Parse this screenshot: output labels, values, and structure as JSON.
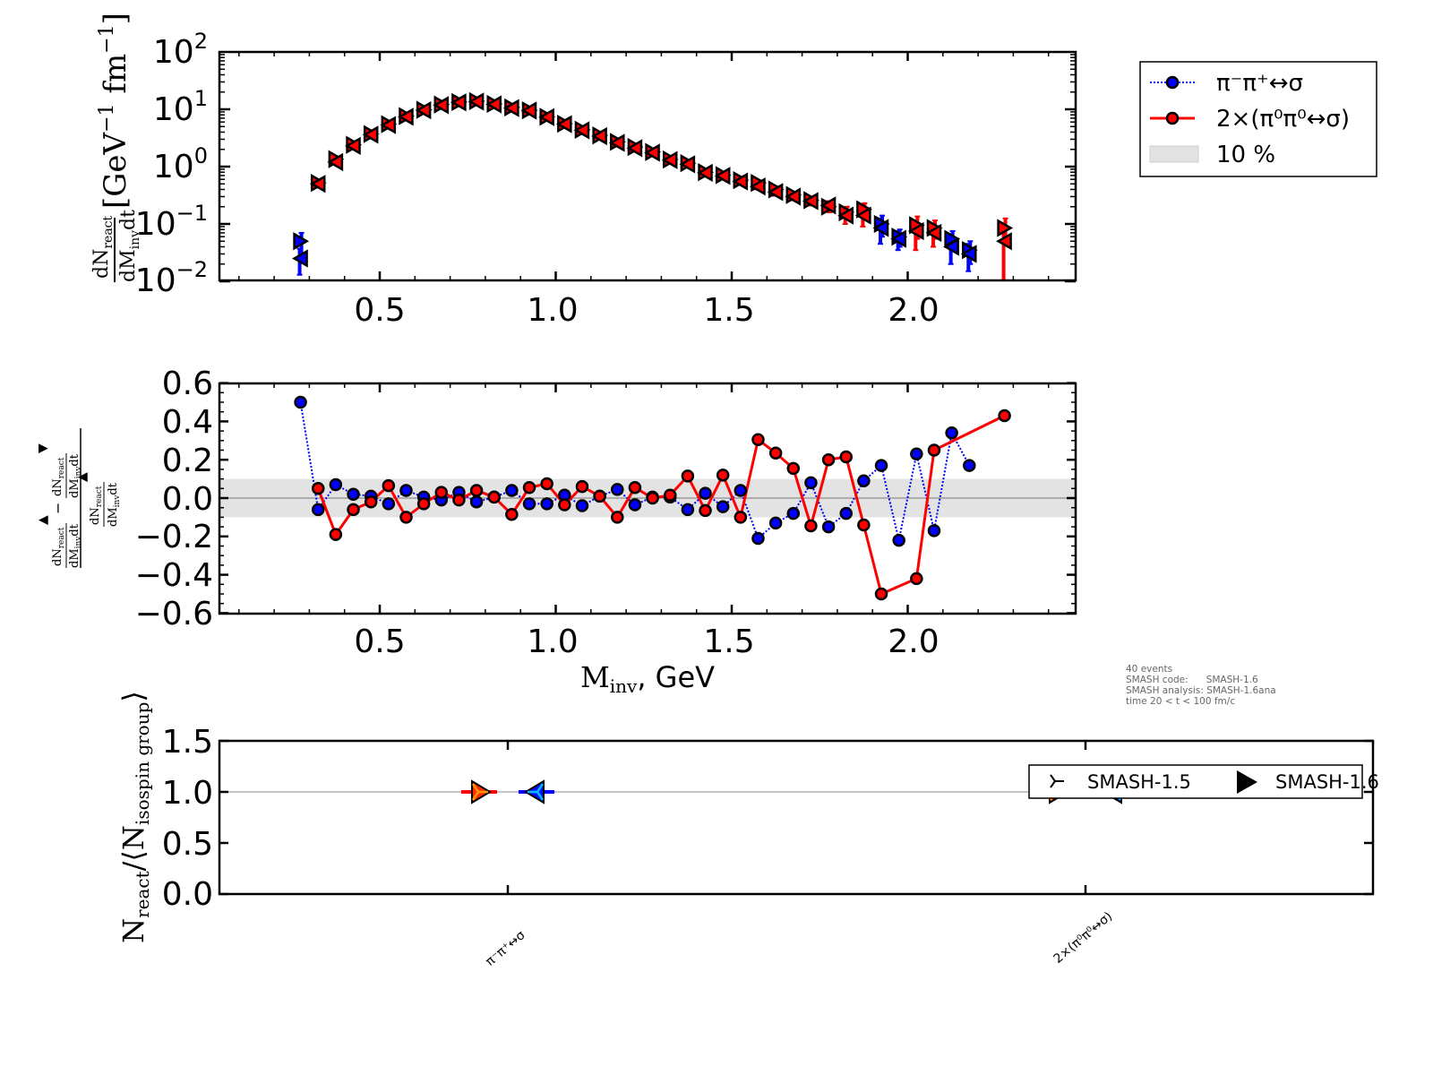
{
  "chart_data": [
    {
      "type": "scatter",
      "panel": "spectrum",
      "yscale": "log",
      "ylim": [
        0.01,
        100
      ],
      "xlim": [
        0.045,
        2.48
      ],
      "xticks": [
        0.5,
        1.0,
        1.5,
        2.0
      ],
      "xtick_labels": [
        "0.5",
        "1.0",
        "1.5",
        "2.0"
      ],
      "yticks": [
        0.01,
        0.1,
        1,
        10,
        100
      ],
      "ytick_labels": [
        {
          "base": "10",
          "exp": "−2"
        },
        {
          "base": "10",
          "exp": "−1"
        },
        {
          "base": "10",
          "exp": "0"
        },
        {
          "base": "10",
          "exp": "1"
        },
        {
          "base": "10",
          "exp": "2"
        }
      ],
      "ylabel": {
        "frac_num": "dN",
        "frac_num_sub": "react",
        "frac_den": "dM",
        "frac_den_sub": "inv",
        "frac_den_tail": "dt",
        "units": "[GeV",
        "units_exp": "−1",
        "units_tail": " fm",
        "units_exp2": "−1",
        "units_close": "]"
      },
      "x": [
        0.275,
        0.325,
        0.375,
        0.425,
        0.475,
        0.525,
        0.575,
        0.625,
        0.675,
        0.725,
        0.775,
        0.825,
        0.875,
        0.925,
        0.975,
        1.025,
        1.075,
        1.125,
        1.175,
        1.225,
        1.275,
        1.325,
        1.375,
        1.425,
        1.475,
        1.525,
        1.575,
        1.625,
        1.675,
        1.725,
        1.775,
        1.825,
        1.875,
        1.925,
        1.975,
        2.025,
        2.075,
        2.125,
        2.175,
        2.275
      ],
      "series": [
        {
          "name": "SMASH-1.6 (right)",
          "marker": "triangle-right",
          "color": "#ff0000",
          "values": [
            0.05,
            0.52,
            1.35,
            2.4,
            3.7,
            5.5,
            7.6,
            9.8,
            12.1,
            13.4,
            13.9,
            12.4,
            10.8,
            9.6,
            7.4,
            5.6,
            4.4,
            3.5,
            2.7,
            2.2,
            1.8,
            1.33,
            1.15,
            0.8,
            0.71,
            0.58,
            0.52,
            0.4,
            0.32,
            0.26,
            0.2,
            0.16,
            0.18,
            0.1,
            0.06,
            0.095,
            0.085,
            0.055,
            0.035,
            0.085
          ],
          "err": [
            0.02,
            0.04,
            0.07,
            0.1,
            0.12,
            0.15,
            0.18,
            0.2,
            0.22,
            0.24,
            0.25,
            0.23,
            0.21,
            0.2,
            0.17,
            0.15,
            0.13,
            0.12,
            0.1,
            0.09,
            0.08,
            0.07,
            0.06,
            0.05,
            0.05,
            0.05,
            0.05,
            0.05,
            0.04,
            0.04,
            0.04,
            0.04,
            0.05,
            0.04,
            0.02,
            0.04,
            0.03,
            0.02,
            0.015,
            0.04
          ]
        },
        {
          "name": "SMASH-1.6 (left)",
          "marker": "triangle-left",
          "color": "#ff0000",
          "values": [
            0.025,
            0.5,
            1.2,
            2.3,
            3.6,
            5.3,
            7.4,
            9.6,
            11.8,
            13.2,
            13.6,
            12.2,
            10.5,
            9.5,
            7.3,
            5.5,
            4.3,
            3.4,
            2.6,
            2.1,
            1.75,
            1.3,
            1.1,
            0.78,
            0.69,
            0.55,
            0.45,
            0.36,
            0.3,
            0.25,
            0.21,
            0.14,
            0.14,
            0.085,
            0.055,
            0.075,
            0.07,
            0.04,
            0.03,
            0.05
          ],
          "err": [
            0.012,
            0.04,
            0.07,
            0.1,
            0.12,
            0.15,
            0.18,
            0.2,
            0.22,
            0.24,
            0.25,
            0.23,
            0.21,
            0.2,
            0.17,
            0.15,
            0.13,
            0.12,
            0.1,
            0.09,
            0.08,
            0.07,
            0.06,
            0.05,
            0.05,
            0.05,
            0.05,
            0.05,
            0.04,
            0.04,
            0.04,
            0.04,
            0.05,
            0.04,
            0.02,
            0.04,
            0.03,
            0.02,
            0.015,
            0.04
          ]
        }
      ],
      "blue_err_color": "#0000ff",
      "red_err_color": "#ff0000"
    },
    {
      "type": "line",
      "panel": "relative-difference",
      "ylim": [
        -0.6,
        0.6
      ],
      "xlim": [
        0.045,
        2.48
      ],
      "xticks": [
        0.5,
        1.0,
        1.5,
        2.0
      ],
      "xtick_labels": [
        "0.5",
        "1.0",
        "1.5",
        "2.0"
      ],
      "yticks": [
        -0.6,
        -0.4,
        -0.2,
        0.0,
        0.2,
        0.4,
        0.6
      ],
      "ytick_labels": [
        "−0.6",
        "−0.4",
        "−0.2",
        "0.0",
        "0.2",
        "0.4",
        "0.6"
      ],
      "xlabel": {
        "main": "M",
        "sub": "inv",
        "tail": ", GeV"
      },
      "ylabel": {
        "frac": "dN_react/dM_inv dt",
        "num_part": "dN",
        "sub": "react",
        "den_part": "dM",
        "den_sub": "inv",
        "den_tail": "dt",
        "up": "▲",
        "down": "▼",
        "minus": "−"
      },
      "band": {
        "from": -0.1,
        "to": 0.1,
        "label": "10 %"
      },
      "series": [
        {
          "name": "π⁻π⁺↔σ",
          "color": "#0000ff",
          "style": "dotted",
          "x": [
            0.275,
            0.325,
            0.375,
            0.425,
            0.475,
            0.525,
            0.575,
            0.625,
            0.675,
            0.725,
            0.775,
            0.825,
            0.875,
            0.925,
            0.975,
            1.025,
            1.075,
            1.125,
            1.175,
            1.225,
            1.275,
            1.325,
            1.375,
            1.425,
            1.475,
            1.525,
            1.575,
            1.625,
            1.675,
            1.725,
            1.775,
            1.825,
            1.875,
            1.925,
            1.975,
            2.025,
            2.075,
            2.125,
            2.175
          ],
          "values": [
            0.5,
            -0.06,
            0.07,
            0.02,
            0.01,
            -0.03,
            0.04,
            0.005,
            -0.01,
            0.03,
            -0.02,
            0.005,
            0.04,
            -0.03,
            -0.03,
            0.015,
            -0.04,
            0.01,
            0.045,
            -0.035,
            0.005,
            0.005,
            -0.06,
            0.025,
            -0.045,
            0.04,
            -0.21,
            -0.13,
            -0.08,
            0.08,
            -0.15,
            -0.08,
            0.09,
            0.17,
            -0.22,
            0.23,
            -0.17,
            0.34,
            0.17
          ]
        },
        {
          "name": "2×(π⁰π⁰↔σ)",
          "color": "#ff0000",
          "style": "solid",
          "x": [
            0.325,
            0.375,
            0.425,
            0.475,
            0.525,
            0.575,
            0.625,
            0.675,
            0.725,
            0.775,
            0.825,
            0.875,
            0.925,
            0.975,
            1.025,
            1.075,
            1.125,
            1.175,
            1.225,
            1.275,
            1.325,
            1.375,
            1.425,
            1.475,
            1.525,
            1.575,
            1.625,
            1.675,
            1.725,
            1.775,
            1.825,
            1.875,
            1.925,
            2.025,
            2.075,
            2.275
          ],
          "values": [
            0.05,
            -0.19,
            -0.06,
            -0.02,
            0.065,
            -0.1,
            -0.03,
            0.03,
            -0.01,
            0.04,
            0.005,
            -0.085,
            0.055,
            0.075,
            -0.035,
            0.06,
            0.01,
            -0.1,
            0.055,
            0.0,
            0.015,
            0.115,
            -0.065,
            0.12,
            -0.1,
            0.305,
            0.235,
            0.155,
            -0.145,
            0.2,
            0.215,
            -0.14,
            -0.5,
            -0.42,
            0.25,
            0.43
          ]
        }
      ]
    },
    {
      "type": "scatter",
      "panel": "isospin-ratio",
      "ylim": [
        0.0,
        1.5
      ],
      "yticks": [
        0.0,
        0.5,
        1.0,
        1.5
      ],
      "ytick_labels": [
        "0.0",
        "0.5",
        "1.0",
        "1.5"
      ],
      "ylabel": {
        "main": "N",
        "sub": "react",
        "mid": "/⟨N",
        "sub2": "isospin group",
        "close": "⟩"
      },
      "categories": [
        "π⁻π⁺↔σ",
        "2×(π⁰π⁰↔σ)"
      ],
      "hline": 1.0,
      "series": [
        {
          "name": "SMASH-1.5",
          "marker": "tri-right",
          "values_left": [
            1.0,
            1.0
          ],
          "values_right": [
            1.0,
            1.0
          ]
        },
        {
          "name": "SMASH-1.6",
          "marker": "triangle-right",
          "values_left": [
            1.0,
            1.0
          ],
          "values_right": [
            1.0,
            1.0
          ]
        }
      ],
      "colors": {
        "left_err": "#ff0000",
        "left_fill": "#ff2a00",
        "left_tri": "#ff9900",
        "right_err": "#0000ff",
        "right_fill": "#0011ff",
        "right_tri": "#00bbff"
      }
    }
  ],
  "legend_top": {
    "items": [
      {
        "label": "π⁻π⁺↔σ",
        "color": "#0000ff",
        "style": "dotted"
      },
      {
        "label": "2×(π⁰π⁰↔σ)",
        "color": "#ff0000",
        "style": "solid"
      },
      {
        "label": "10 %",
        "color": "#e6e6e6",
        "style": "patch"
      }
    ]
  },
  "legend_bottom": {
    "items": [
      {
        "label": "SMASH-1.5"
      },
      {
        "label": "SMASH-1.6"
      }
    ]
  },
  "annotation": {
    "lines": [
      "40 events",
      "SMASH code:      SMASH-1.6",
      "SMASH analysis: SMASH-1.6ana",
      "time 20 < t < 100 fm/c"
    ]
  }
}
